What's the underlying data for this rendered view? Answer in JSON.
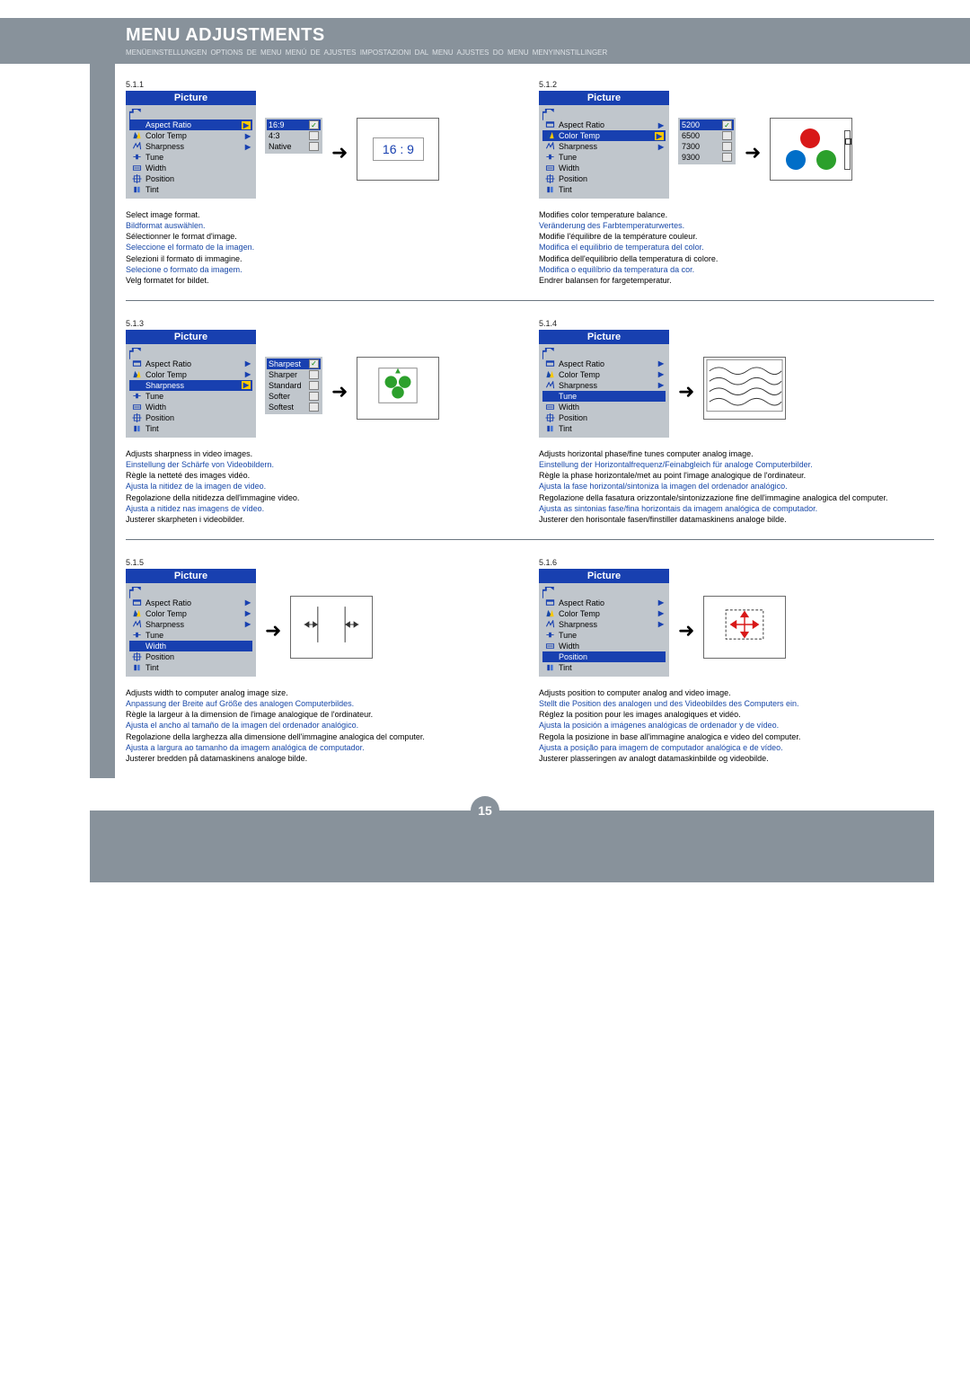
{
  "header": {
    "title": "MENU ADJUSTMENTS",
    "subtitle": "MENÜEINSTELLUNGEN   OPTIONS DE MENU   MENÚ DE AJUSTES   IMPOSTAZIONI DAL MENU   AJUSTES DO MENU   MENYINNSTILLINGER"
  },
  "page_number": "15",
  "menu_title": "Picture",
  "menu_items": [
    {
      "label": "Aspect Ratio",
      "icon": "aspect"
    },
    {
      "label": "Color Temp",
      "icon": "temp"
    },
    {
      "label": "Sharpness",
      "icon": "sharp"
    },
    {
      "label": "Tune",
      "icon": "tune"
    },
    {
      "label": "Width",
      "icon": "width"
    },
    {
      "label": "Position",
      "icon": "position"
    },
    {
      "label": "Tint",
      "icon": "tint"
    }
  ],
  "arrow_items": [
    0,
    1,
    2
  ],
  "sections": [
    {
      "num": "5.1.1",
      "selected": 0,
      "submenu": {
        "items": [
          "16:9",
          "4:3",
          "Native"
        ],
        "selected": 0,
        "has_check": true
      },
      "preview": "169",
      "desc": [
        {
          "t": "Select image format.",
          "it": false
        },
        {
          "t": "Bildformat auswählen.",
          "it": true
        },
        {
          "t": "Sélectionner le format d'image.",
          "it": false
        },
        {
          "t": "Seleccione el formato de la imagen.",
          "it": true
        },
        {
          "t": "Selezioni il formato di immagine.",
          "it": false
        },
        {
          "t": "Selecione o formato da imagem.",
          "it": true
        },
        {
          "t": "Velg formatet for bildet.",
          "it": false
        }
      ]
    },
    {
      "num": "5.1.2",
      "selected": 1,
      "submenu": {
        "items": [
          "5200",
          "6500",
          "7300",
          "9300"
        ],
        "selected": 0,
        "has_check": true
      },
      "preview": "circles",
      "desc": [
        {
          "t": "Modifies color temperature balance.",
          "it": false
        },
        {
          "t": "Veränderung des Farbtemperaturwertes.",
          "it": true
        },
        {
          "t": "Modifie l'équilibre de la température couleur.",
          "it": false
        },
        {
          "t": "Modifica el equilibrio de temperatura del color.",
          "it": true
        },
        {
          "t": "Modifica dell'equilibrio della temperatura di colore.",
          "it": false
        },
        {
          "t": "Modifica o equilíbrio da temperatura da cor.",
          "it": true
        },
        {
          "t": "Endrer balansen for fargetemperatur.",
          "it": false
        }
      ]
    },
    {
      "num": "5.1.3",
      "selected": 2,
      "submenu": {
        "items": [
          "Sharpest",
          "Sharper",
          "Standard",
          "Softer",
          "Softest"
        ],
        "selected": 0,
        "has_check": true
      },
      "preview": "sharp",
      "desc": [
        {
          "t": "Adjusts sharpness in video images.",
          "it": false
        },
        {
          "t": "Einstellung der Schärfe von Videobildern.",
          "it": true
        },
        {
          "t": "Règle la netteté des images vidéo.",
          "it": false
        },
        {
          "t": "Ajusta la nitidez de la imagen de video.",
          "it": true
        },
        {
          "t": "Regolazione della nitidezza dell'immagine video.",
          "it": false
        },
        {
          "t": "Ajusta a nitidez nas imagens de vídeo.",
          "it": true
        },
        {
          "t": "Justerer skarpheten i videobilder.",
          "it": false
        }
      ]
    },
    {
      "num": "5.1.4",
      "selected": 3,
      "submenu": null,
      "preview": "waves",
      "desc": [
        {
          "t": "Adjusts horizontal phase/fine tunes computer analog image.",
          "it": false
        },
        {
          "t": "Einstellung der Horizontalfrequenz/Feinabgleich für analoge Computerbilder.",
          "it": true
        },
        {
          "t": "Règle la phase horizontale/met au point l'image analogique de l'ordinateur.",
          "it": false
        },
        {
          "t": "Ajusta la fase horizontal/sintoniza la imagen del ordenador analógico.",
          "it": true
        },
        {
          "t": "Regolazione della fasatura orizzontale/sintonizzazione fine dell'immagine analogica del computer.",
          "it": false
        },
        {
          "t": "Ajusta as sintonias fase/fina horizontais da imagem analógica de computador.",
          "it": true
        },
        {
          "t": "Justerer den horisontale fasen/finstiller datamaskinens analoge bilde.",
          "it": false
        }
      ]
    },
    {
      "num": "5.1.5",
      "selected": 4,
      "submenu": null,
      "preview": "width",
      "desc": [
        {
          "t": "Adjusts width to computer analog image size.",
          "it": false
        },
        {
          "t": "Anpassung der Breite auf Größe des analogen Computerbildes.",
          "it": true
        },
        {
          "t": "Règle la largeur à la dimension de l'image analogique de l'ordinateur.",
          "it": false
        },
        {
          "t": "Ajusta el ancho al tamaño de la imagen del ordenador analógico.",
          "it": true
        },
        {
          "t": "Regolazione della larghezza alla dimensione dell'immagine analogica del computer.",
          "it": false
        },
        {
          "t": "Ajusta a largura ao tamanho da imagem analógica de computador.",
          "it": true
        },
        {
          "t": "Justerer bredden på datamaskinens analoge bilde.",
          "it": false
        }
      ]
    },
    {
      "num": "5.1.6",
      "selected": 5,
      "submenu": null,
      "preview": "position",
      "desc": [
        {
          "t": "Adjusts position to computer analog and video image.",
          "it": false
        },
        {
          "t": "Stellt die Position des analogen und des Videobildes des Computers ein.",
          "it": true
        },
        {
          "t": "Réglez la position pour les images analogiques et vidéo.",
          "it": false
        },
        {
          "t": "Ajusta la posición a imágenes analógicas de ordenador y de vídeo.",
          "it": true
        },
        {
          "t": "Regola la posizione in base all'immagine analogica e video del computer.",
          "it": false
        },
        {
          "t": "Ajusta a posição para imagem de computador analógica e de vídeo.",
          "it": true
        },
        {
          "t": "Justerer plasseringen av analogt datamaskinbilde og videobilde.",
          "it": false
        }
      ]
    }
  ],
  "colors": {
    "header_bg": "#88929b",
    "menu_blue": "#1840b0",
    "menu_body": "#c0c6cc",
    "highlight": "#fbc800",
    "link_blue": "#1848a8"
  },
  "preview_169_text": "16 : 9"
}
